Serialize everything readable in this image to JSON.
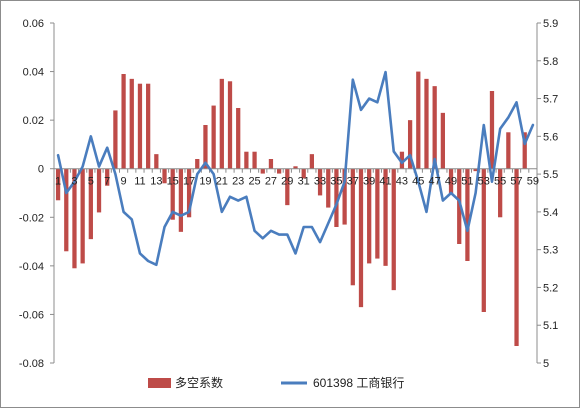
{
  "chart_data": {
    "type": "bar+line",
    "title": "",
    "xlabel": "",
    "ylabel_left": "",
    "ylabel_right": "",
    "grid": false,
    "legend_position": "bottom",
    "x_tick_labels": [
      "1",
      "3",
      "5",
      "7",
      "9",
      "11",
      "13",
      "15",
      "17",
      "19",
      "21",
      "23",
      "25",
      "27",
      "29",
      "31",
      "33",
      "35",
      "37",
      "39",
      "41",
      "43",
      "45",
      "47",
      "49",
      "51",
      "53",
      "55",
      "57",
      "59"
    ],
    "x": [
      1,
      2,
      3,
      4,
      5,
      6,
      7,
      8,
      9,
      10,
      11,
      12,
      13,
      14,
      15,
      16,
      17,
      18,
      19,
      20,
      21,
      22,
      23,
      24,
      25,
      26,
      27,
      28,
      29,
      30,
      31,
      32,
      33,
      34,
      35,
      36,
      37,
      38,
      39,
      40,
      41,
      42,
      43,
      44,
      45,
      46,
      47,
      48,
      49,
      50,
      51,
      52,
      53,
      54,
      55,
      56,
      57,
      58,
      59
    ],
    "y_left_ticks": [
      "0.06",
      "0.04",
      "0.02",
      "0",
      "-0.02",
      "-0.04",
      "-0.06",
      "-0.08"
    ],
    "y_right_ticks": [
      "5.9",
      "5.8",
      "5.7",
      "5.6",
      "5.5",
      "5.4",
      "5.3",
      "5.2",
      "5.1",
      "5"
    ],
    "y_left_range": [
      -0.08,
      0.06
    ],
    "y_right_range": [
      5.0,
      5.9
    ],
    "series": [
      {
        "name": "多空系数",
        "axis": "left",
        "kind": "bar",
        "color": "#be4b48",
        "values": [
          -0.013,
          -0.034,
          -0.041,
          -0.039,
          -0.029,
          -0.018,
          -0.007,
          0.024,
          0.039,
          0.037,
          0.035,
          0.035,
          0.006,
          -0.006,
          -0.021,
          -0.026,
          -0.02,
          0.004,
          0.018,
          0.026,
          0.037,
          0.036,
          0.025,
          0.007,
          0.007,
          -0.002,
          0.004,
          -0.002,
          -0.015,
          0.001,
          -0.004,
          0.006,
          -0.011,
          -0.016,
          -0.024,
          -0.023,
          -0.048,
          -0.057,
          -0.039,
          -0.037,
          -0.04,
          -0.05,
          0.007,
          0.02,
          0.04,
          0.037,
          0.034,
          0.023,
          -0.01,
          -0.031,
          -0.038,
          -0.001,
          -0.059,
          0.032,
          -0.02,
          0.015,
          -0.073,
          0.015,
          0.0
        ]
      },
      {
        "name": "601398 工商银行",
        "axis": "right",
        "kind": "line",
        "color": "#4a7dbe",
        "values": [
          5.55,
          5.45,
          5.48,
          5.52,
          5.6,
          5.52,
          5.57,
          5.5,
          5.4,
          5.38,
          5.29,
          5.27,
          5.26,
          5.36,
          5.4,
          5.39,
          5.4,
          5.5,
          5.53,
          5.5,
          5.4,
          5.44,
          5.43,
          5.44,
          5.35,
          5.33,
          5.35,
          5.34,
          5.34,
          5.29,
          5.36,
          5.36,
          5.32,
          5.37,
          5.42,
          5.48,
          5.75,
          5.67,
          5.7,
          5.69,
          5.77,
          5.56,
          5.53,
          5.55,
          5.48,
          5.4,
          5.54,
          5.43,
          5.45,
          5.43,
          5.35,
          5.45,
          5.63,
          5.48,
          5.62,
          5.65,
          5.69,
          5.58,
          5.63
        ]
      }
    ]
  }
}
